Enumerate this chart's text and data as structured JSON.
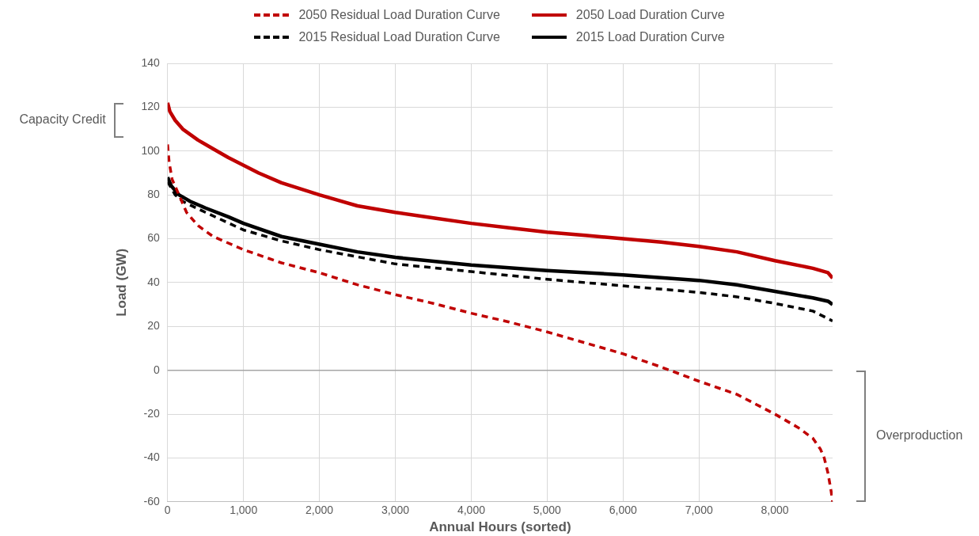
{
  "chart_data": {
    "type": "line",
    "xlabel": "Annual Hours (sorted)",
    "ylabel": "Load (GW)",
    "xlim": [
      0,
      8760
    ],
    "xticks": [
      0,
      {
        "value": 1000,
        "label": "1,000"
      },
      {
        "value": 2000,
        "label": "2,000"
      },
      {
        "value": 3000,
        "label": "3,000"
      },
      {
        "value": 4000,
        "label": "4,000"
      },
      {
        "value": 5000,
        "label": "5,000"
      },
      {
        "value": 6000,
        "label": "6,000"
      },
      {
        "value": 7000,
        "label": "7,000"
      },
      {
        "value": 8000,
        "label": "8,000"
      }
    ],
    "ylim": [
      -60,
      140
    ],
    "yticks": [
      -60,
      -40,
      -20,
      0,
      20,
      40,
      60,
      80,
      100,
      120,
      140
    ],
    "grid": true,
    "legend": "top",
    "marker": "none",
    "annotations": [
      "Capacity Credit",
      "Overproduction"
    ],
    "series": [
      {
        "name": "2050 Residual Load Duration Curve",
        "color": "#c00000",
        "line_style": "dashed",
        "x": [
          0,
          20,
          60,
          150,
          250,
          400,
          600,
          1000,
          1500,
          2000,
          2500,
          3000,
          3500,
          4000,
          4500,
          5000,
          5500,
          6000,
          6500,
          7000,
          7500,
          8000,
          8300,
          8500,
          8600,
          8650,
          8700,
          8740,
          8760
        ],
        "values": [
          103,
          95,
          87,
          80,
          72,
          66,
          61,
          55,
          49,
          44.5,
          39,
          34.5,
          30.5,
          26,
          22,
          17.5,
          12.5,
          7.5,
          1.5,
          -5,
          -11,
          -20,
          -26,
          -31,
          -36,
          -40,
          -47,
          -55,
          -60
        ]
      },
      {
        "name": "2050 Load Duration Curve",
        "color": "#c00000",
        "line_style": "solid",
        "x": [
          0,
          30,
          100,
          200,
          400,
          600,
          800,
          1000,
          1200,
          1500,
          2000,
          2500,
          3000,
          3500,
          4000,
          4500,
          5000,
          5500,
          6000,
          6500,
          7000,
          7500,
          8000,
          8500,
          8700,
          8760
        ],
        "values": [
          122,
          118,
          114,
          110,
          105,
          101,
          97,
          93.5,
          90,
          85.5,
          80,
          75,
          72,
          69.5,
          67,
          65,
          63,
          61.5,
          60,
          58.5,
          56.5,
          54,
          50,
          46.5,
          44.5,
          42
        ]
      },
      {
        "name": "2015 Residual Load Duration Curve",
        "color": "#000000",
        "line_style": "dashed",
        "x": [
          0,
          100,
          200,
          500,
          1000,
          1500,
          2000,
          3000,
          4000,
          5000,
          6000,
          7000,
          7500,
          8000,
          8500,
          8760
        ],
        "values": [
          86,
          80,
          77,
          72,
          64,
          59,
          55,
          48.5,
          45,
          41.5,
          38.5,
          35.5,
          33.5,
          30.5,
          27,
          22.5
        ]
      },
      {
        "name": "2015 Load Duration Curve",
        "color": "#000000",
        "line_style": "solid",
        "x": [
          0,
          50,
          150,
          300,
          500,
          800,
          1000,
          1500,
          2000,
          2500,
          3000,
          4000,
          5000,
          6000,
          7000,
          7500,
          8000,
          8500,
          8700,
          8760
        ],
        "values": [
          88,
          84,
          80,
          77,
          74,
          70,
          67,
          61,
          57.5,
          54,
          51.5,
          48,
          45.5,
          43.5,
          41,
          39,
          36,
          33,
          31.5,
          30
        ]
      }
    ]
  }
}
